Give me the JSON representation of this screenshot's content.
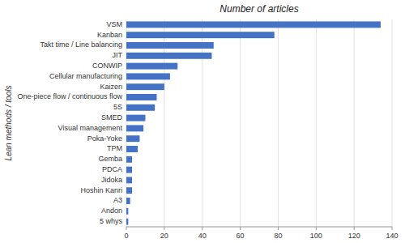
{
  "chart_data": {
    "type": "bar",
    "orientation": "horizontal",
    "title": "Number of articles",
    "ylabel": "Lean methods / tools",
    "categories": [
      "VSM",
      "Kanban",
      "Takt time / Line balancing",
      "JIT",
      "CONWIP",
      "Cellular manufacturing",
      "Kaizen",
      "One-piece flow / continuous flow",
      "5S",
      "SMED",
      "Visual management",
      "Poka-Yoke",
      "TPM",
      "Gemba",
      "PDCA",
      "Jidoka",
      "Hoshin Kanri",
      "A3",
      "Andon",
      "5 whys"
    ],
    "values": [
      134,
      78,
      46,
      45,
      27,
      23,
      20,
      16,
      15,
      10,
      9,
      7,
      6,
      3,
      3,
      3,
      3,
      2,
      1,
      1
    ],
    "color": "#4472C4",
    "xlim": [
      0,
      140
    ],
    "xticks": [
      0,
      20,
      40,
      60,
      80,
      100,
      120,
      140
    ],
    "grid": true
  }
}
